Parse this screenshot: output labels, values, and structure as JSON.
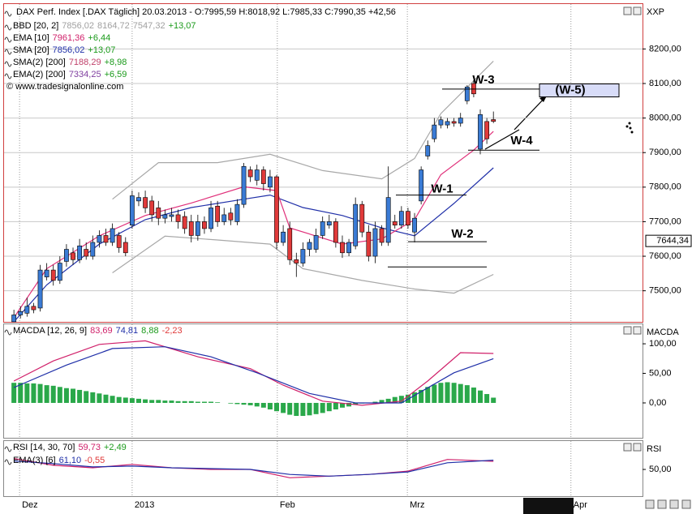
{
  "chart_data": [
    {
      "type": "candlestick",
      "title": "DAX Perf. Index [.DAX  Täglich] 20.03.2013 - O:7995,59 H:8018,92 L:7985,33 C:7990,35 +42,56",
      "legend": [
        {
          "name": "BBD [20, 2]",
          "items": [
            {
              "text": "7856,02",
              "color": "#a0a0a0"
            },
            {
              "text": "8164,72",
              "color": "#a0a0a0"
            },
            {
              "text": "7547,32",
              "color": "#a0a0a0"
            },
            {
              "text": "+13,07",
              "color": "#1a9a1a"
            }
          ]
        },
        {
          "name": "EMA [10]",
          "items": [
            {
              "text": "7961,36",
              "color": "#d0206a"
            },
            {
              "text": "+6,44",
              "color": "#1a9a1a"
            }
          ]
        },
        {
          "name": "SMA [20]",
          "items": [
            {
              "text": "7856,02",
              "color": "#1f2fa8"
            },
            {
              "text": "+13,07",
              "color": "#1a9a1a"
            }
          ]
        },
        {
          "name": "SMA(2) [200]",
          "items": [
            {
              "text": "7188,29",
              "color": "#c0406a"
            },
            {
              "text": "+8,98",
              "color": "#1a9a1a"
            }
          ]
        },
        {
          "name": "EMA(2) [200]",
          "items": [
            {
              "text": "7334,25",
              "color": "#8040a0"
            },
            {
              "text": "+6,59",
              "color": "#1a9a1a"
            }
          ]
        }
      ],
      "copyright": "© www.tradesignalonline.com",
      "axis_name": "XXP",
      "open": [
        7410,
        7430,
        7435,
        7455,
        7450,
        7540,
        7560,
        7530,
        7585,
        7610,
        7590,
        7620,
        7600,
        7640,
        7660,
        7640,
        7660,
        7640,
        7690,
        7760,
        7770,
        7760,
        7740,
        7710,
        7715,
        7720,
        7715,
        7700,
        7660,
        7700,
        7680,
        7745,
        7700,
        7725,
        7700,
        7750,
        7850,
        7820,
        7850,
        7800,
        7830,
        7640,
        7680,
        7590,
        7580,
        7620,
        7620,
        7660,
        7690,
        7700,
        7640,
        7610,
        7630,
        7750,
        7670,
        7600,
        7680,
        7640,
        7700,
        7690,
        7730,
        7670,
        7760,
        7890,
        7940,
        7980,
        7980,
        7990,
        7985,
        8050,
        8100,
        7910,
        7990,
        7995.59
      ],
      "high": [
        7445,
        7455,
        7480,
        7465,
        7575,
        7580,
        7575,
        7600,
        7635,
        7625,
        7650,
        7640,
        7660,
        7675,
        7680,
        7695,
        7670,
        7655,
        7790,
        7785,
        7790,
        7775,
        7760,
        7735,
        7740,
        7735,
        7730,
        7720,
        7720,
        7715,
        7760,
        7760,
        7740,
        7740,
        7765,
        7870,
        7860,
        7865,
        7860,
        7850,
        7835,
        7690,
        7700,
        7610,
        7640,
        7650,
        7680,
        7715,
        7720,
        7710,
        7660,
        7650,
        7770,
        7760,
        7690,
        7700,
        7690,
        7860,
        7720,
        7745,
        7740,
        7725,
        7860,
        7935,
        8000,
        8005,
        8000,
        8000,
        8015,
        8095,
        8110,
        8025,
        8000,
        8018.92
      ],
      "low": [
        7412,
        7420,
        7425,
        7435,
        7440,
        7530,
        7515,
        7520,
        7570,
        7575,
        7580,
        7590,
        7590,
        7625,
        7630,
        7630,
        7610,
        7600,
        7680,
        7745,
        7725,
        7700,
        7690,
        7695,
        7700,
        7680,
        7665,
        7640,
        7645,
        7665,
        7670,
        7685,
        7690,
        7690,
        7690,
        7740,
        7815,
        7805,
        7790,
        7785,
        7620,
        7630,
        7575,
        7540,
        7570,
        7600,
        7610,
        7650,
        7680,
        7625,
        7595,
        7600,
        7620,
        7655,
        7585,
        7580,
        7630,
        7630,
        7680,
        7680,
        7680,
        7640,
        7750,
        7880,
        7930,
        7970,
        7970,
        7975,
        7975,
        8040,
        8060,
        7895,
        7925,
        7985.33
      ],
      "close": [
        7430,
        7440,
        7455,
        7445,
        7560,
        7560,
        7530,
        7580,
        7620,
        7590,
        7630,
        7600,
        7640,
        7660,
        7640,
        7680,
        7625,
        7610,
        7775,
        7770,
        7740,
        7720,
        7710,
        7720,
        7720,
        7700,
        7680,
        7660,
        7700,
        7680,
        7740,
        7700,
        7720,
        7705,
        7750,
        7860,
        7830,
        7850,
        7810,
        7830,
        7640,
        7670,
        7590,
        7580,
        7620,
        7640,
        7660,
        7700,
        7700,
        7640,
        7610,
        7640,
        7750,
        7670,
        7600,
        7680,
        7640,
        7770,
        7690,
        7730,
        7690,
        7710,
        7850,
        7920,
        7980,
        7995,
        7990,
        7985,
        8000,
        8090,
        8070,
        8010,
        7940,
        7990.35
      ],
      "up_color": "#3a7bd5",
      "down_color": "#e03a3a",
      "series": [
        {
          "color": "#a8a8a8",
          "x": [
            15,
            22,
            31,
            39,
            47,
            56,
            61,
            65,
            73
          ],
          "values": [
            7765,
            7871,
            7871,
            7895,
            7848,
            7824,
            7883,
            8013,
            8164.72
          ]
        },
        {
          "color": "#a8a8a8",
          "x": [
            15,
            23,
            31,
            39,
            44,
            53,
            61,
            67,
            73
          ],
          "values": [
            7552,
            7658,
            7647,
            7635,
            7564,
            7530,
            7505,
            7493,
            7547.32
          ]
        },
        {
          "color": "#1f2fa8",
          "x": [
            0,
            5,
            13,
            20,
            27,
            35,
            39,
            44,
            50,
            56,
            61,
            67,
            73
          ],
          "values": [
            7410,
            7517,
            7635,
            7706,
            7741,
            7765,
            7777,
            7741,
            7718,
            7682,
            7659,
            7753,
            7856.02
          ]
        },
        {
          "color": "#e0307a",
          "x": [
            0,
            5,
            13,
            20,
            27,
            35,
            40,
            42,
            50,
            56,
            61,
            65,
            70,
            73
          ],
          "values": [
            7422,
            7564,
            7659,
            7718,
            7754,
            7801,
            7790,
            7682,
            7635,
            7650,
            7706,
            7836,
            7907,
            7961.36
          ]
        }
      ],
      "ylim": [
        7410,
        8330
      ],
      "yticks": [
        {
          "value": 8200,
          "label": "8200,00"
        },
        {
          "value": 8100,
          "label": "8100,00"
        },
        {
          "value": 8000,
          "label": "8000,00"
        },
        {
          "value": 7900,
          "label": "7900,00"
        },
        {
          "value": 7800,
          "label": "7800,00"
        },
        {
          "value": 7700,
          "label": "7700,00"
        },
        {
          "value": 7600,
          "label": "7600,00"
        },
        {
          "value": 7500,
          "label": "7500,00"
        }
      ],
      "grid": true,
      "xlim": [
        -1.5,
        95.7
      ],
      "price_marker": {
        "value": 7644.34,
        "label": "7644,34"
      },
      "annotations": [
        {
          "label": "W-3",
          "value": 8084
        },
        {
          "label": "W-4",
          "value": 7907
        },
        {
          "label": "W-1",
          "value": 7777
        },
        {
          "label": "W-2",
          "value": 7642
        },
        {
          "label": "(W-5)",
          "value": 8080
        }
      ],
      "levels": [
        7569
      ]
    },
    {
      "type": "bar",
      "legend": [
        {
          "name": "MACDA [12, 26, 9]",
          "items": [
            {
              "text": "83,69",
              "color": "#d0206a"
            },
            {
              "text": "74,81",
              "color": "#1f2fa8"
            },
            {
              "text": "8,88",
              "color": "#1a9a1a"
            },
            {
              "text": "-2,23",
              "color": "#e03a3a"
            }
          ]
        }
      ],
      "axis_name": "MACDA",
      "values": [
        34,
        34,
        33,
        33,
        32,
        30,
        29,
        27,
        25,
        24,
        22,
        20,
        18,
        16,
        14,
        12,
        10,
        9,
        8,
        7,
        6,
        5,
        5,
        4,
        4,
        3,
        3,
        3,
        2,
        2,
        2,
        1,
        0,
        -1,
        -2,
        -3,
        -4,
        -6,
        -8,
        -11,
        -14,
        -17,
        -20,
        -22,
        -22,
        -21,
        -19,
        -17,
        -14,
        -11,
        -8,
        -6,
        -3,
        -1,
        0,
        2,
        5,
        7,
        10,
        12,
        14,
        18,
        22,
        27,
        31,
        34,
        35,
        34,
        32,
        30,
        26,
        21,
        15,
        8.88
      ],
      "color": "#2aa84a",
      "series": [
        {
          "color": "#d0206a",
          "x": [
            0,
            6,
            13,
            20,
            28,
            36,
            41,
            47,
            53,
            59,
            63,
            68,
            73
          ],
          "values": [
            37,
            71,
            99,
            105,
            78,
            58,
            30,
            3,
            -4,
            3,
            37,
            85,
            83.69
          ]
        },
        {
          "color": "#1f2fa8",
          "x": [
            0,
            8,
            15,
            23,
            30,
            37,
            45,
            52,
            59,
            67,
            73
          ],
          "values": [
            26,
            64,
            92,
            95,
            78,
            51,
            16,
            0,
            0,
            51,
            74.81
          ]
        }
      ],
      "ylim": [
        -59,
        133
      ],
      "yticks": [
        {
          "value": 100,
          "label": "100,00"
        },
        {
          "value": 50,
          "label": "50,00"
        },
        {
          "value": 0,
          "label": "0,00"
        }
      ],
      "xlim": [
        -1.5,
        95.7
      ]
    },
    {
      "type": "line",
      "legend": [
        {
          "name": "RSI [14, 30, 70]",
          "items": [
            {
              "text": "59,73",
              "color": "#d0206a"
            },
            {
              "text": "+2,49",
              "color": "#1a9a1a"
            }
          ]
        },
        {
          "name": "EMA(3) [6]",
          "items": [
            {
              "text": "61,10",
              "color": "#1f2fa8"
            },
            {
              "text": "-0,55",
              "color": "#e03a3a"
            }
          ]
        }
      ],
      "axis_name": "RSI",
      "series": [
        {
          "color": "#d0206a",
          "x": [
            0,
            6,
            12,
            18,
            24,
            30,
            36,
            42,
            48,
            54,
            60,
            66,
            73
          ],
          "values": [
            63,
            55,
            52,
            56,
            52,
            50,
            50,
            40,
            42,
            44,
            48,
            62,
            59.73
          ]
        },
        {
          "color": "#1f2fa8",
          "x": [
            0,
            6,
            12,
            18,
            24,
            30,
            36,
            42,
            48,
            54,
            60,
            66,
            73
          ],
          "values": [
            60,
            57,
            53,
            54,
            52,
            51,
            50,
            44,
            42,
            44,
            47,
            58,
            61.1
          ]
        }
      ],
      "ylim": [
        18,
        84
      ],
      "yticks": [
        {
          "value": 50,
          "label": "50,00"
        }
      ],
      "xlim": [
        -1.5,
        95.7
      ],
      "xticks": [
        {
          "value": 0.86,
          "label": "Dez"
        },
        {
          "value": 18,
          "label": "2013"
        },
        {
          "value": 40.1,
          "label": "Feb"
        },
        {
          "value": 59.9,
          "label": "Mrz"
        },
        {
          "value": 84.8,
          "label": "Apr"
        }
      ]
    }
  ]
}
